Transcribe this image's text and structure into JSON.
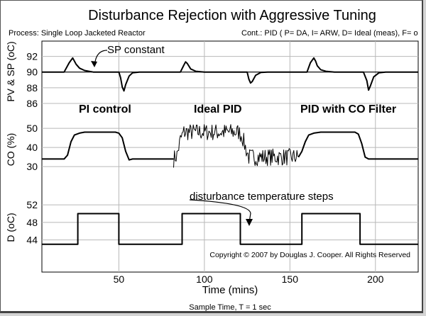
{
  "chart_data": {
    "type": "line",
    "title": "Disturbance Rejection with Aggressive Tuning",
    "process_label": "Process: Single Loop Jacketed Reactor",
    "controller_label": "Cont.: PID ( P= DA, I= ARW, D= Ideal (meas), F= o",
    "xlabel": "Time (mins)",
    "footer": "Sample Time, T = 1 sec",
    "copyright": "Copyright © 2007 by Douglas J. Cooper. All Rights Reserved",
    "xlim": [
      5,
      225
    ],
    "xticks": [
      50,
      100,
      150,
      200
    ],
    "panels": [
      {
        "id": "pv",
        "ylabel": "PV & SP (oC)",
        "ylim": [
          86,
          93.5
        ],
        "yticks": [
          86,
          88,
          90,
          92
        ],
        "series": [
          {
            "role": "SP",
            "x": [
              5,
              225
            ],
            "y": [
              90,
              90
            ]
          },
          {
            "role": "PV",
            "x": [
              5,
              18,
              21,
              23,
              25,
              27,
              30,
              35,
              50,
              51,
              52,
              53,
              54,
              56,
              58,
              62,
              86,
              88,
              89,
              90,
              92,
              95,
              100,
              125,
              126,
              127,
              128,
              130,
              133,
              137,
              160,
              162,
              164,
              165,
              166,
              168,
              171,
              176,
              193,
              195,
              196,
              197,
              199,
              202,
              206,
              225
            ],
            "y": [
              90,
              90,
              91.2,
              91.8,
              91.0,
              90.5,
              90.2,
              90,
              90,
              89.3,
              88.1,
              87.6,
              88.4,
              89.5,
              89.9,
              90,
              90,
              90.9,
              91.3,
              91.1,
              90.4,
              90.1,
              90,
              90,
              89.1,
              88.6,
              88.8,
              89.6,
              89.95,
              90,
              90,
              91.2,
              91.8,
              91.4,
              90.8,
              90.3,
              90.1,
              90,
              90,
              88.9,
              87.7,
              88.2,
              89.4,
              89.9,
              90,
              90
            ]
          }
        ]
      },
      {
        "id": "co",
        "ylabel": "CO (%)",
        "ylim": [
          26,
          53
        ],
        "yticks": [
          30,
          40,
          50
        ],
        "series": [
          {
            "role": "CO",
            "x": [
              5,
              18,
              20,
              22,
              24,
              27,
              30,
              48,
              50,
              52,
              54,
              56,
              58,
              60,
              82
            ],
            "y": [
              34,
              34,
              36,
              43,
              46.5,
              47.5,
              48,
              48,
              47.5,
              45,
              38,
              33.5,
              34,
              34,
              34
            ]
          },
          {
            "role": "CO",
            "x": [
              82,
              84,
              86,
              88,
              120,
              122,
              124,
              126,
              155
            ],
            "y": [
              34,
              36,
              44,
              48,
              48,
              46,
              40,
              35,
              35
            ],
            "noise": 4.5
          },
          {
            "role": "CO",
            "x": [
              155,
              157,
              159,
              161,
              164,
              168,
              188,
              190,
              192,
              194,
              196,
              225
            ],
            "y": [
              35,
              38,
              43,
              46.5,
              47.5,
              48,
              48,
              47,
              42,
              35,
              34,
              34
            ]
          }
        ]
      },
      {
        "id": "d",
        "ylabel": "D (oC)",
        "ylim": [
          41.5,
          53
        ],
        "yticks": [
          44,
          48,
          52
        ],
        "series": [
          {
            "role": "D",
            "step": true,
            "x": [
              5,
              26,
              50,
              87,
              121,
              157,
              191,
              225
            ],
            "y": [
              43,
              50,
              43,
              50,
              43,
              50,
              43,
              43
            ]
          }
        ]
      }
    ],
    "annotations": [
      {
        "text": "SP constant",
        "panel": "pv"
      },
      {
        "text": "PI control",
        "panel": "co"
      },
      {
        "text": "Ideal PID",
        "panel": "co"
      },
      {
        "text": "PID with CO Filter",
        "panel": "co"
      },
      {
        "text": "disturbance temperature steps",
        "panel": "d"
      }
    ]
  }
}
